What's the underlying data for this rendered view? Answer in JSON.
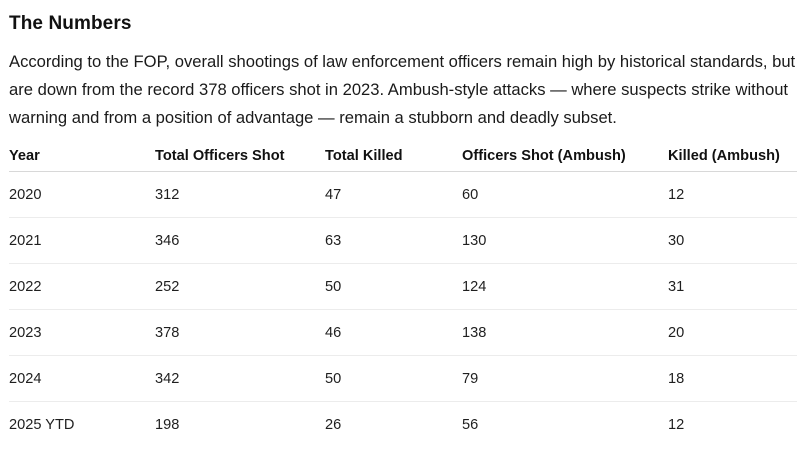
{
  "section": {
    "heading": "The Numbers",
    "paragraph": "According to the FOP, overall shootings of law enforcement officers remain high by historical standards, but are down from the record 378 officers shot in 2023. Ambush-style attacks — where suspects strike without warning and from a position of advantage — remain a stubborn and deadly subset."
  },
  "table": {
    "headers": [
      "Year",
      "Total Officers Shot",
      "Total Killed",
      "Officers Shot (Ambush)",
      "Killed (Ambush)"
    ],
    "rows": [
      [
        "2020",
        "312",
        "47",
        "60",
        "12"
      ],
      [
        "2021",
        "346",
        "63",
        "130",
        "30"
      ],
      [
        "2022",
        "252",
        "50",
        "124",
        "31"
      ],
      [
        "2023",
        "378",
        "46",
        "138",
        "20"
      ],
      [
        "2024",
        "342",
        "50",
        "79",
        "18"
      ],
      [
        "2025 YTD",
        "198",
        "26",
        "56",
        "12"
      ]
    ]
  }
}
